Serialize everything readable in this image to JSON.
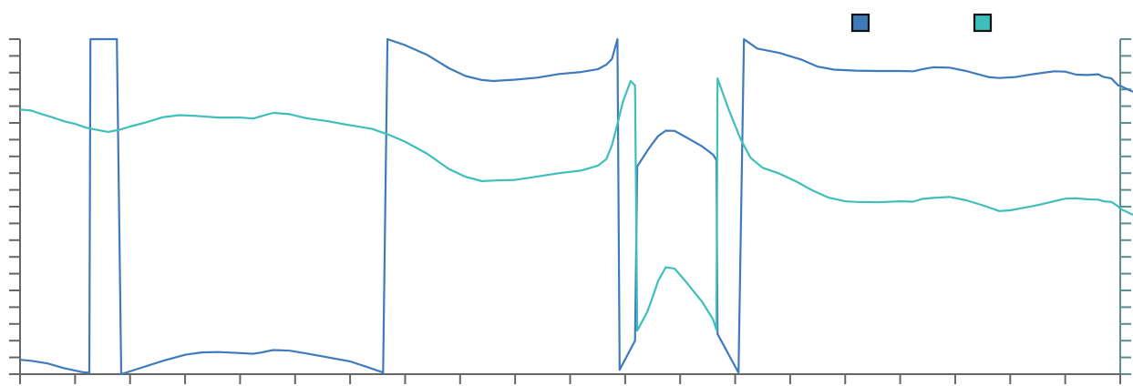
{
  "chart_data": {
    "type": "line",
    "title": "",
    "xlabel": "",
    "ylabel": "",
    "grid": false,
    "legend": "top-right",
    "xlim": [
      0,
      100
    ],
    "ylim_left": [
      0,
      100
    ],
    "ylim_right": [
      0,
      100
    ],
    "x_ticks": [
      0,
      5,
      10,
      15,
      20,
      25,
      30,
      35,
      40,
      45,
      50,
      55,
      60,
      65,
      70,
      75,
      80,
      85,
      90,
      95,
      100
    ],
    "y_ticks": [
      0,
      5,
      10,
      15,
      20,
      25,
      30,
      35,
      40,
      45,
      50,
      55,
      60,
      65,
      70,
      75,
      80,
      85,
      90,
      95,
      100
    ],
    "series": [
      {
        "name": "",
        "color": "#3f7bbc",
        "axis": "left",
        "points": [
          [
            0,
            4.3
          ],
          [
            1,
            4
          ],
          [
            2.5,
            3.2
          ],
          [
            4,
            1.8
          ],
          [
            5.7,
            0.6
          ],
          [
            6.3,
            0.4
          ],
          [
            6.4,
            100
          ],
          [
            8.8,
            100
          ],
          [
            9.2,
            0
          ],
          [
            11,
            1.9
          ],
          [
            13,
            4
          ],
          [
            15,
            5.8
          ],
          [
            16.5,
            6.5
          ],
          [
            18,
            6.6
          ],
          [
            20,
            6.3
          ],
          [
            21.2,
            6.1
          ],
          [
            22,
            6.5
          ],
          [
            23,
            7.2
          ],
          [
            24.5,
            7
          ],
          [
            26,
            6.2
          ],
          [
            28,
            5
          ],
          [
            30,
            3.8
          ],
          [
            31.5,
            2.2
          ],
          [
            33,
            0.5
          ],
          [
            33.4,
            100
          ],
          [
            35,
            98.2
          ],
          [
            37,
            95.3
          ],
          [
            39,
            91.3
          ],
          [
            40.5,
            89
          ],
          [
            42,
            87.8
          ],
          [
            43,
            87.5
          ],
          [
            45,
            87.9
          ],
          [
            47,
            88.5
          ],
          [
            49,
            89.6
          ],
          [
            51,
            90.2
          ],
          [
            52.5,
            91
          ],
          [
            53.3,
            92.4
          ],
          [
            53.8,
            94.1
          ],
          [
            54.3,
            100
          ],
          [
            54.5,
            1.3
          ],
          [
            55.9,
            10
          ],
          [
            56.1,
            62
          ],
          [
            57,
            66.6
          ],
          [
            57.5,
            68.9
          ],
          [
            58,
            71.1
          ],
          [
            58.7,
            72.7
          ],
          [
            59.5,
            72.6
          ],
          [
            60.5,
            70.8
          ],
          [
            62,
            68
          ],
          [
            63,
            65.5
          ],
          [
            63.3,
            63.9
          ],
          [
            63.4,
            12
          ],
          [
            65.3,
            0.4
          ],
          [
            65.8,
            100
          ],
          [
            67,
            97.2
          ],
          [
            69,
            95.9
          ],
          [
            71,
            93.9
          ],
          [
            72.5,
            91.8
          ],
          [
            74,
            90.9
          ],
          [
            76,
            90.6
          ],
          [
            78,
            90.5
          ],
          [
            80,
            90.5
          ],
          [
            81.2,
            90.4
          ],
          [
            82,
            91
          ],
          [
            83,
            91.6
          ],
          [
            84.5,
            91.5
          ],
          [
            86,
            90.5
          ],
          [
            88,
            88.7
          ],
          [
            89,
            88.4
          ],
          [
            90.5,
            88.7
          ],
          [
            92,
            89.5
          ],
          [
            94,
            90.4
          ],
          [
            95,
            90.3
          ],
          [
            96,
            89.4
          ],
          [
            97,
            89.3
          ],
          [
            98,
            89.5
          ],
          [
            98.5,
            88.7
          ],
          [
            99.2,
            88.3
          ],
          [
            99.8,
            86.2
          ],
          [
            100,
            86.1
          ],
          [
            101,
            84.5
          ],
          [
            102,
            83.5
          ],
          [
            102.5,
            83.2
          ],
          [
            103,
            83.8
          ]
        ]
      },
      {
        "name": "",
        "color": "#3fbfbc",
        "axis": "right",
        "points": [
          [
            0,
            79
          ],
          [
            1,
            78.7
          ],
          [
            2,
            77.6
          ],
          [
            3,
            76.6
          ],
          [
            4,
            75.5
          ],
          [
            5,
            74.7
          ],
          [
            6,
            73.6
          ],
          [
            7,
            72.9
          ],
          [
            8,
            72.3
          ],
          [
            9,
            72.9
          ],
          [
            10,
            73.9
          ],
          [
            11.4,
            75.1
          ],
          [
            13,
            76.7
          ],
          [
            14.5,
            77.3
          ],
          [
            16,
            77.1
          ],
          [
            18,
            76.6
          ],
          [
            20,
            76.6
          ],
          [
            21.2,
            76.3
          ],
          [
            22,
            77.1
          ],
          [
            23,
            78
          ],
          [
            24.5,
            77.6
          ],
          [
            26,
            76.4
          ],
          [
            28,
            75.5
          ],
          [
            30,
            74.3
          ],
          [
            32,
            73.2
          ],
          [
            33.5,
            71.5
          ],
          [
            35,
            69.4
          ],
          [
            37,
            65.8
          ],
          [
            39,
            61.2
          ],
          [
            40.5,
            58.9
          ],
          [
            42,
            57.6
          ],
          [
            43,
            57.8
          ],
          [
            45,
            58
          ],
          [
            47,
            59
          ],
          [
            49,
            60
          ],
          [
            51,
            60.8
          ],
          [
            52.5,
            62.2
          ],
          [
            53.3,
            64.2
          ],
          [
            53.8,
            68.4
          ],
          [
            54.3,
            74.7
          ],
          [
            54.8,
            81.3
          ],
          [
            55.5,
            87.5
          ],
          [
            55.9,
            86.2
          ],
          [
            56.1,
            13
          ],
          [
            57,
            18.5
          ],
          [
            57.5,
            23
          ],
          [
            58,
            27.9
          ],
          [
            58.7,
            31.9
          ],
          [
            59.5,
            31.5
          ],
          [
            60.5,
            27.7
          ],
          [
            62,
            21.6
          ],
          [
            63,
            16.3
          ],
          [
            63.3,
            13.2
          ],
          [
            63.4,
            88.3
          ],
          [
            64.4,
            79.1
          ],
          [
            65.5,
            70.1
          ],
          [
            66.4,
            64.6
          ],
          [
            67.5,
            61.6
          ],
          [
            69,
            59.9
          ],
          [
            70.5,
            57.6
          ],
          [
            72,
            54.9
          ],
          [
            73.5,
            52.7
          ],
          [
            75,
            51.6
          ],
          [
            76,
            51.4
          ],
          [
            78,
            51.3
          ],
          [
            80,
            51.6
          ],
          [
            81.2,
            51.5
          ],
          [
            82,
            52.3
          ],
          [
            83,
            52.6
          ],
          [
            84.5,
            52.9
          ],
          [
            86,
            51.9
          ],
          [
            87.5,
            50.4
          ],
          [
            89,
            48.7
          ],
          [
            90,
            48.9
          ],
          [
            92,
            50.1
          ],
          [
            94,
            51.6
          ],
          [
            95,
            52.4
          ],
          [
            96,
            52.5
          ],
          [
            97,
            52.2
          ],
          [
            98,
            52.1
          ],
          [
            98.5,
            51.6
          ],
          [
            99.2,
            51.4
          ],
          [
            99.8,
            50.1
          ],
          [
            100,
            49.4
          ],
          [
            101,
            47.8
          ],
          [
            102,
            46.7
          ],
          [
            102.5,
            46.5
          ],
          [
            103,
            47.3
          ]
        ]
      }
    ]
  }
}
